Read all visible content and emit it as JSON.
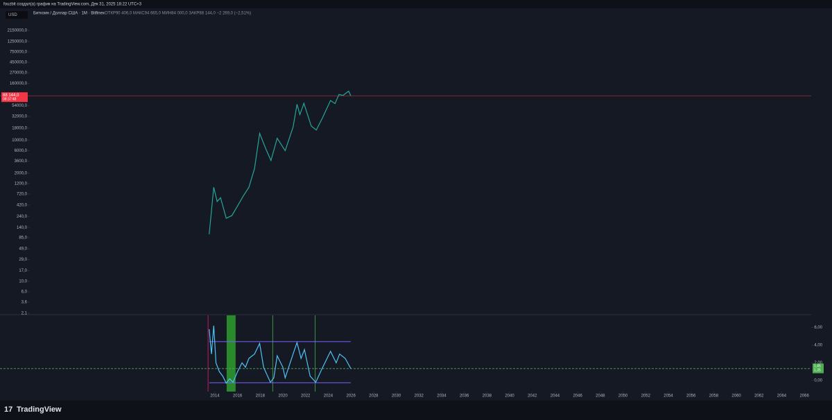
{
  "header": {
    "attribution": "fouzbit создал(а) график на TradingView.com, Дек 31, 2025 18:22 UTC+3",
    "currency": "USD",
    "symbol": "Биткоин / Доллар США · 1М · Bitfinex",
    "ohlc": "ОТКР90 406,0  МАКС94 665,0  МИН84 000,0  ЗАКР88 144,0  −2 269,0 (−2,51%)"
  },
  "footer": {
    "logo": "TradingView"
  },
  "chart_data": [
    {
      "type": "line",
      "log_scale": true,
      "color": "#26a69a",
      "price_line_color": "#f23645",
      "x": [
        2013.5,
        2013.9,
        2014.2,
        2014.5,
        2015.0,
        2015.5,
        2016.0,
        2016.5,
        2017.0,
        2017.5,
        2017.95,
        2018.5,
        2018.95,
        2019.5,
        2020.2,
        2020.9,
        2021.25,
        2021.5,
        2021.85,
        2022.5,
        2022.95,
        2023.5,
        2024.2,
        2024.6,
        2024.95,
        2025.3,
        2025.8,
        2025.99
      ],
      "values": [
        100,
        1000,
        500,
        600,
        220,
        250,
        400,
        650,
        1000,
        2500,
        14000,
        6500,
        3700,
        11000,
        6000,
        19000,
        58000,
        35000,
        61000,
        20000,
        16500,
        30000,
        70000,
        60000,
        94000,
        90000,
        110000,
        88144
      ],
      "xlim": [
        1997.8,
        2066.6
      ],
      "ylim": [
        2.1,
        2150000
      ],
      "yticks": [
        {
          "value": 2150000,
          "label": "2150000,0"
        },
        {
          "value": 1250000,
          "label": "1250000,0"
        },
        {
          "value": 750000,
          "label": "750000,0"
        },
        {
          "value": 450000,
          "label": "450000,0"
        },
        {
          "value": 270000,
          "label": "270000,0"
        },
        {
          "value": 160000,
          "label": "160000,0"
        },
        {
          "value": 54000,
          "label": "54000,0"
        },
        {
          "value": 32000,
          "label": "32000,0"
        },
        {
          "value": 18000,
          "label": "18000,0"
        },
        {
          "value": 10000,
          "label": "10000,0"
        },
        {
          "value": 6000,
          "label": "6000,0"
        },
        {
          "value": 3600,
          "label": "3600,0"
        },
        {
          "value": 2000,
          "label": "2000,0"
        },
        {
          "value": 1200,
          "label": "1200,0"
        },
        {
          "value": 720,
          "label": "720,0"
        },
        {
          "value": 420,
          "label": "420,0"
        },
        {
          "value": 240,
          "label": "240,0"
        },
        {
          "value": 140,
          "label": "140,0"
        },
        {
          "value": 85,
          "label": "85,0"
        },
        {
          "value": 49,
          "label": "49,0"
        },
        {
          "value": 29,
          "label": "29,0"
        },
        {
          "value": 17,
          "label": "17,0"
        },
        {
          "value": 10,
          "label": "10,0"
        },
        {
          "value": 6,
          "label": "6,0"
        },
        {
          "value": 3.6,
          "label": "3,6"
        },
        {
          "value": 2.1,
          "label": "2,1"
        }
      ],
      "last_price": {
        "value": 88144,
        "label": "88 144,0"
      },
      "countdown": "08:37:48"
    },
    {
      "type": "line",
      "color": "#4fc3f7",
      "x": [
        2013.5,
        2013.7,
        2013.9,
        2014.1,
        2014.4,
        2014.7,
        2015.0,
        2015.3,
        2015.6,
        2016.0,
        2016.4,
        2016.7,
        2017.0,
        2017.5,
        2017.95,
        2018.3,
        2018.9,
        2019.2,
        2019.5,
        2020.0,
        2020.2,
        2020.9,
        2021.25,
        2021.6,
        2021.9,
        2022.4,
        2022.9,
        2023.4,
        2024.2,
        2024.7,
        2025.0,
        2025.5,
        2025.99
      ],
      "values": [
        5.8,
        3,
        6.2,
        2,
        1,
        0.5,
        -0.3,
        0.2,
        -0.2,
        1,
        2,
        1.5,
        2.5,
        3,
        4.2,
        1.5,
        -0.2,
        0.3,
        2.8,
        1.5,
        0.3,
        3,
        4.3,
        2.5,
        3.5,
        0.5,
        -0.2,
        1.2,
        3.3,
        2,
        3,
        2.5,
        1.35
      ],
      "xlim": [
        1997.8,
        2066.6
      ],
      "xticks": [
        2014,
        2016,
        2018,
        2020,
        2022,
        2024,
        2026,
        2028,
        2030,
        2032,
        2034,
        2036,
        2038,
        2040,
        2042,
        2044,
        2046,
        2048,
        2050,
        2052,
        2054,
        2056,
        2058,
        2060,
        2062,
        2064,
        2066
      ],
      "ylim": [
        -1.25,
        7.37
      ],
      "yticks": [
        {
          "value": 6,
          "label": "6,00"
        },
        {
          "value": 4,
          "label": "4,00"
        },
        {
          "value": 2,
          "label": "2,00"
        },
        {
          "value": 0,
          "label": "0,00"
        }
      ],
      "upper_band": 4.4,
      "lower_band": -0.25,
      "band_color": "#7b61ff",
      "signal": {
        "value": 1.35,
        "label": "1,35"
      },
      "last_value": {
        "value": 1.45,
        "label": "1,45"
      },
      "signal_color": "#4caf50",
      "markers": [
        {
          "x": 2013.4,
          "color": "#e91e63"
        },
        {
          "x": 2019.1,
          "color": "#4caf50"
        },
        {
          "x": 2022.85,
          "color": "#4caf50"
        }
      ],
      "zones": [
        {
          "x": [
            2015.04,
            2015.83
          ],
          "color": "#2e9e2e"
        }
      ]
    }
  ]
}
